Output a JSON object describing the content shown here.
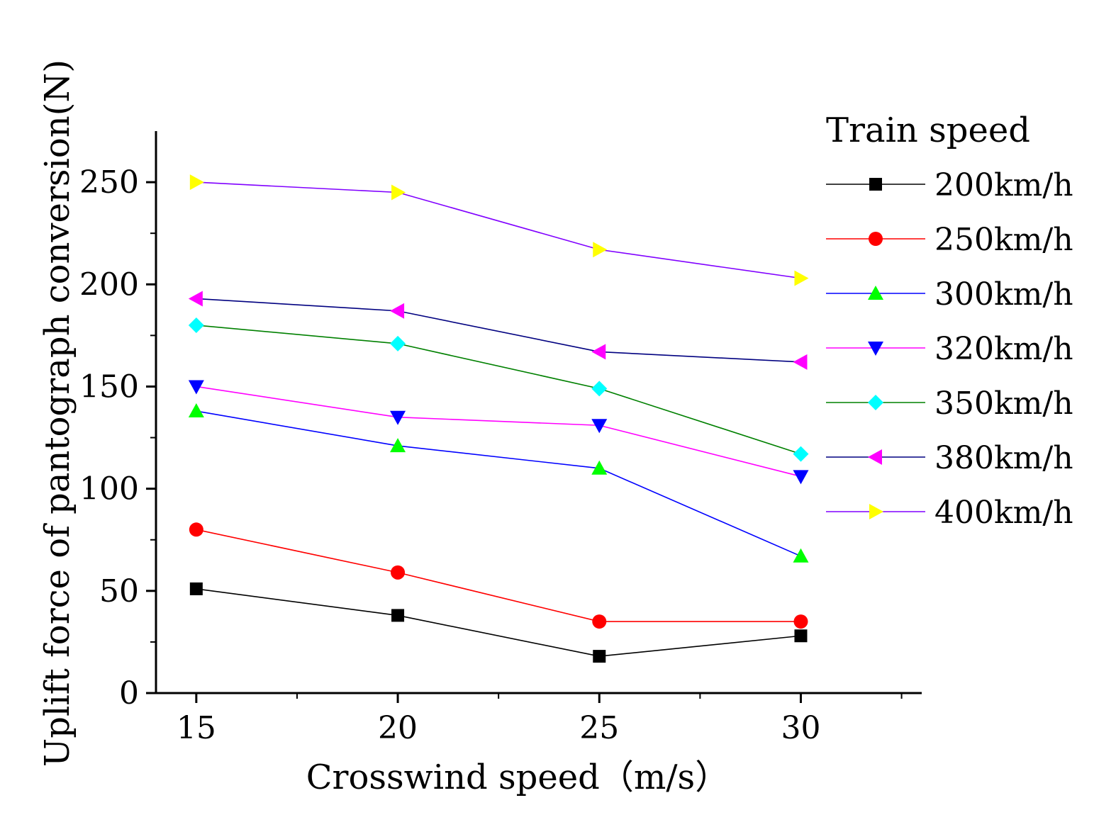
{
  "chart_data": {
    "type": "line",
    "xlabel": "Crosswind speed（m/s）",
    "ylabel": "Uplift force of pantograph conversion(N)",
    "x": [
      15,
      20,
      25,
      30
    ],
    "xlim": [
      14,
      33
    ],
    "ylim": [
      0,
      275
    ],
    "xticks": [
      15,
      20,
      25,
      30
    ],
    "yticks": [
      0,
      50,
      100,
      150,
      200,
      250
    ],
    "grid": false,
    "legend_title": "Train speed",
    "legend_position": "right",
    "series": [
      {
        "name": "200km/h",
        "values": [
          51,
          38,
          18,
          28
        ],
        "line_color": "#000000",
        "marker_color": "#000000",
        "marker": "square"
      },
      {
        "name": "250km/h",
        "values": [
          80,
          59,
          35,
          35
        ],
        "line_color": "#ff0000",
        "marker_color": "#ff0000",
        "marker": "circle"
      },
      {
        "name": "300km/h",
        "values": [
          138,
          121,
          110,
          67
        ],
        "line_color": "#0000ff",
        "marker_color": "#00ff00",
        "marker": "triangle-up"
      },
      {
        "name": "320km/h",
        "values": [
          150,
          135,
          131,
          106
        ],
        "line_color": "#ff00ff",
        "marker_color": "#0000ff",
        "marker": "triangle-down"
      },
      {
        "name": "350km/h",
        "values": [
          180,
          171,
          149,
          117
        ],
        "line_color": "#008000",
        "marker_color": "#00ffff",
        "marker": "diamond"
      },
      {
        "name": "380km/h",
        "values": [
          193,
          187,
          167,
          162
        ],
        "line_color": "#000080",
        "marker_color": "#ff00ff",
        "marker": "triangle-left"
      },
      {
        "name": "400km/h",
        "values": [
          250,
          245,
          217,
          203
        ],
        "line_color": "#8000ff",
        "marker_color": "#ffff00",
        "marker": "triangle-right"
      }
    ]
  }
}
